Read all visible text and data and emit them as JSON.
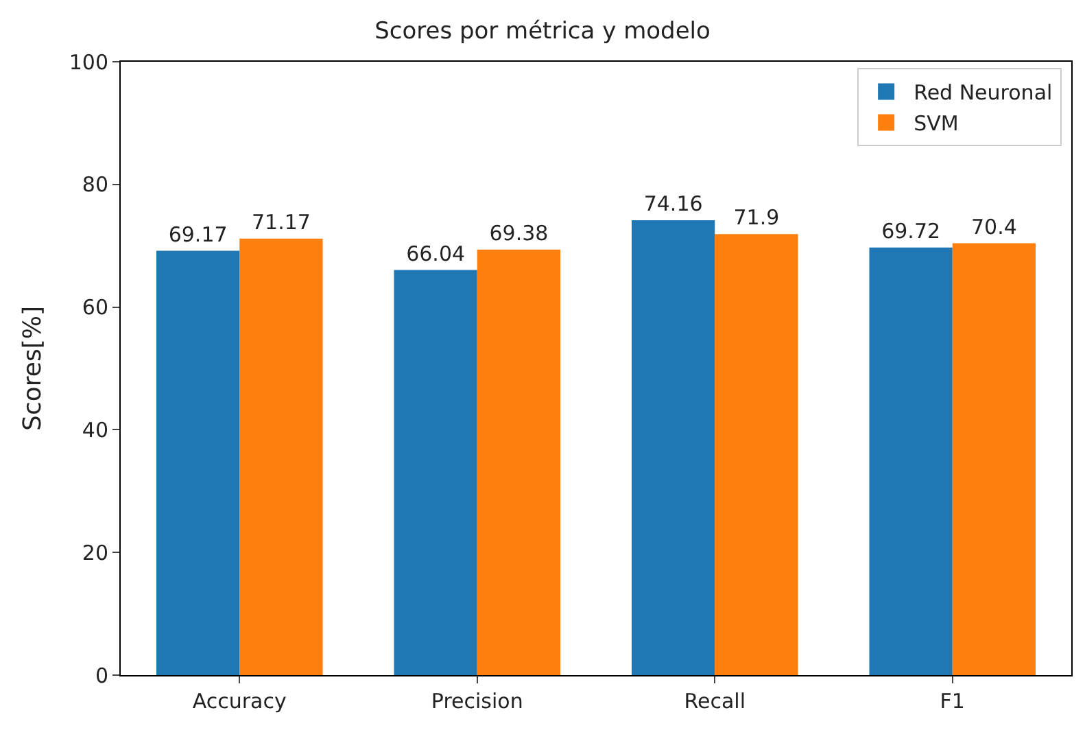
{
  "chart_data": {
    "type": "bar",
    "title": "Scores por métrica y modelo",
    "ylabel": "Scores[%]",
    "categories": [
      "Accuracy",
      "Precision",
      "Recall",
      "F1"
    ],
    "series": [
      {
        "name": "Red Neuronal",
        "color": "#1f77b4",
        "values": [
          69.17,
          66.04,
          74.16,
          69.72
        ]
      },
      {
        "name": "SVM",
        "color": "#ff7f0e",
        "values": [
          71.17,
          69.38,
          71.9,
          70.4
        ]
      }
    ],
    "ylim": [
      0,
      100
    ],
    "yticks": [
      0,
      20,
      40,
      60,
      80,
      100
    ],
    "data_labels": true,
    "legend": "top right"
  }
}
